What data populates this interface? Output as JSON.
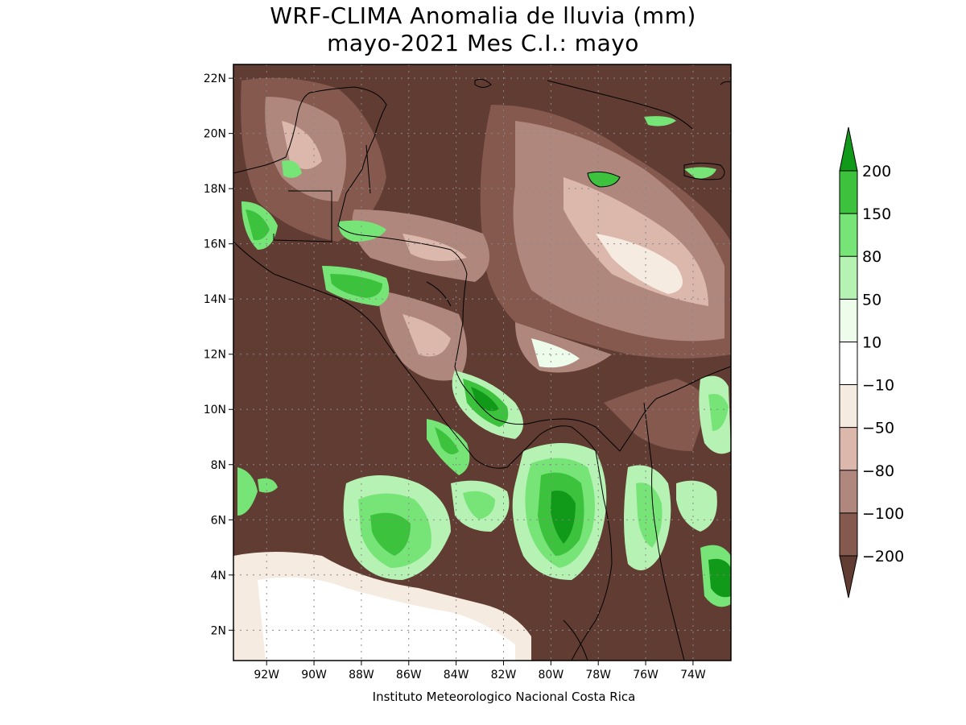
{
  "header": {
    "title_line1": "WRF-CLIMA Anomalia de lluvia (mm)",
    "title_line2": "mayo-2021 Mes C.I.: mayo"
  },
  "map": {
    "lon_range": [
      -93.4,
      -72.4
    ],
    "lat_range": [
      0.9,
      22.5
    ],
    "x_ticks": [
      "92W",
      "90W",
      "88W",
      "86W",
      "84W",
      "82W",
      "80W",
      "78W",
      "76W",
      "74W"
    ],
    "x_tick_values": [
      -92,
      -90,
      -88,
      -86,
      -84,
      -82,
      -80,
      -78,
      -76,
      -74
    ],
    "y_ticks": [
      "2N",
      "4N",
      "6N",
      "8N",
      "10N",
      "12N",
      "14N",
      "16N",
      "18N",
      "20N",
      "22N"
    ],
    "y_tick_values": [
      2,
      4,
      6,
      8,
      10,
      12,
      14,
      16,
      18,
      20,
      22
    ],
    "grid": "dotted"
  },
  "legend": {
    "labels": [
      "200",
      "150",
      "80",
      "50",
      "10",
      "−10",
      "−50",
      "−80",
      "−100",
      "−200"
    ],
    "colors": [
      "#119a19",
      "#3cc23c",
      "#76e476",
      "#b7f2b5",
      "#eefcec",
      "#ffffff",
      "#f6ebe1",
      "#dcb8ac",
      "#b0877c",
      "#85594e",
      "#603c32"
    ]
  },
  "credit": "Instituto Meteorologico Nacional Costa Rica"
}
